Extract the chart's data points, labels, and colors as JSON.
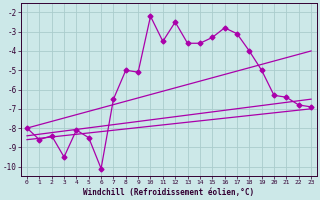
{
  "background_color": "#cce8e8",
  "grid_color": "#aacccc",
  "line_color": "#aa00aa",
  "marker": "D",
  "markersize": 2.5,
  "linewidth": 0.9,
  "xlim": [
    -0.5,
    23.5
  ],
  "ylim": [
    -10.5,
    -1.5
  ],
  "yticks": [
    -10,
    -9,
    -8,
    -7,
    -6,
    -5,
    -4,
    -3,
    -2
  ],
  "xticks": [
    0,
    1,
    2,
    3,
    4,
    5,
    6,
    7,
    8,
    9,
    10,
    11,
    12,
    13,
    14,
    15,
    16,
    17,
    18,
    19,
    20,
    21,
    22,
    23
  ],
  "xlabel": "Windchill (Refroidissement éolien,°C)",
  "series1": {
    "x": [
      0,
      1,
      2,
      3,
      4,
      5,
      6,
      7,
      8,
      9,
      10,
      11,
      12,
      13,
      14,
      15,
      16,
      17,
      18,
      19,
      20,
      21,
      22,
      23
    ],
    "y": [
      -8.0,
      -8.6,
      -8.4,
      -9.5,
      -8.1,
      -8.5,
      -10.1,
      -6.5,
      -5.0,
      -5.1,
      -2.2,
      -3.5,
      -2.5,
      -3.6,
      -3.6,
      -3.3,
      -2.8,
      -3.1,
      -4.0,
      -5.0,
      -6.3,
      -6.4,
      -6.8,
      -6.9
    ]
  },
  "series2": {
    "x": [
      0,
      23
    ],
    "y": [
      -8.0,
      -4.0
    ]
  },
  "series3": {
    "x": [
      0,
      23
    ],
    "y": [
      -8.4,
      -6.5
    ]
  },
  "series4": {
    "x": [
      0,
      23
    ],
    "y": [
      -8.6,
      -7.0
    ]
  }
}
